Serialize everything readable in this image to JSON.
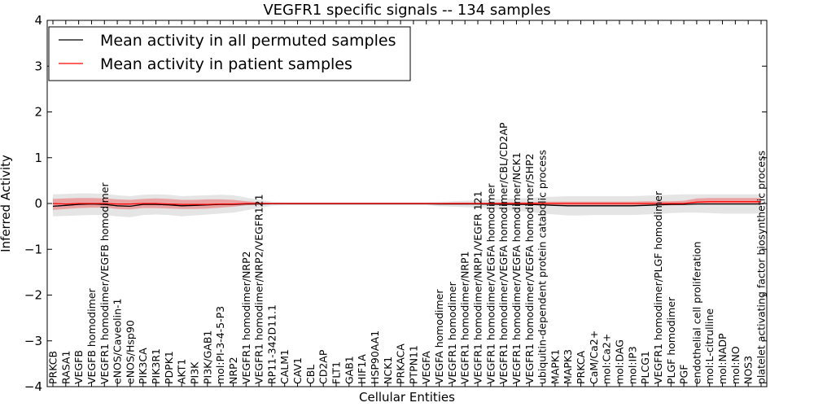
{
  "chart_data": {
    "type": "line",
    "title": "VEGFR1 specific signals -- 134 samples",
    "xlabel": "Cellular Entities",
    "ylabel": "Inferred Activity",
    "ylim": [
      -4,
      4
    ],
    "yticks": [
      -4,
      -3,
      -2,
      -1,
      0,
      1,
      2,
      3,
      4
    ],
    "grid": false,
    "legend_position": "top-left",
    "categories": [
      "PRKCB",
      "RASA1",
      "VEGFB",
      "VEGFB homodimer",
      "VEGFR1 homodimer/VEGFB homodimer",
      "eNOS/Caveolin-1",
      "eNOS/Hsp90",
      "PIK3CA",
      "PIK3R1",
      "PDPK1",
      "AKT1",
      "PI3K",
      "PI3K/GAB1",
      "mol:PI-3-4-5-P3",
      "NRP2",
      "VEGFR1 homodimer/NRP2",
      "VEGFR1 homodimer/NRP2/VEGFR121",
      "RP11-342D11.1",
      "CALM1",
      "CAV1",
      "CBL",
      "CD2AP",
      "FLT1",
      "GAB1",
      "HIF1A",
      "HSP90AA1",
      "NCK1",
      "PRKACA",
      "PTPN11",
      "VEGFA",
      "VEGFA homodimer",
      "VEGFR1 homodimer",
      "VEGFR1 homodimer/NRP1",
      "VEGFR1 homodimer/NRP1/VEGFR 121",
      "VEGFR1 homodimer/VEGFA homodimer",
      "VEGFR1 homodimer/VEGFA homodimer/CBL/CD2AP",
      "VEGFR1 homodimer/VEGFA homodimer/NCK1",
      "VEGFR1 homodimer/VEGFA homodimer/SHP2",
      "ubiquitin-dependent protein catabolic process",
      "MAPK1",
      "MAPK3",
      "PRKCA",
      "CaM/Ca2+",
      "mol:Ca2+",
      "mol:DAG",
      "mol:IP3",
      "PLCG1",
      "VEGFR1 homodimer/PLGF homodimer",
      "PLGF homodimer",
      "PGF",
      "endothelial cell proliferation",
      "mol:L-citrulline",
      "mol:NADP",
      "mol:NO",
      "NOS3",
      "platelet activating factor biosynthetic process"
    ],
    "series": [
      {
        "name": "Mean activity in all permuted samples",
        "color": "#000000",
        "values": [
          -0.06,
          -0.04,
          -0.02,
          -0.01,
          -0.02,
          -0.05,
          -0.06,
          -0.02,
          -0.02,
          -0.03,
          -0.05,
          -0.04,
          -0.03,
          -0.02,
          -0.02,
          -0.01,
          -0.01,
          -0.005,
          -0.005,
          -0.005,
          -0.005,
          -0.005,
          -0.005,
          -0.005,
          -0.005,
          -0.005,
          -0.005,
          -0.005,
          -0.005,
          -0.005,
          -0.01,
          -0.01,
          -0.01,
          -0.01,
          -0.015,
          -0.02,
          -0.02,
          -0.02,
          -0.03,
          -0.04,
          -0.05,
          -0.05,
          -0.05,
          -0.05,
          -0.05,
          -0.05,
          -0.04,
          -0.03,
          -0.02,
          -0.02,
          -0.01,
          -0.01,
          -0.01,
          -0.01,
          -0.01,
          -0.01
        ],
        "band_low": [
          -0.28,
          -0.27,
          -0.26,
          -0.25,
          -0.25,
          -0.28,
          -0.3,
          -0.25,
          -0.24,
          -0.25,
          -0.28,
          -0.26,
          -0.24,
          -0.22,
          -0.2,
          -0.15,
          -0.1,
          -0.05,
          -0.04,
          -0.04,
          -0.04,
          -0.04,
          -0.04,
          -0.04,
          -0.04,
          -0.04,
          -0.04,
          -0.04,
          -0.04,
          -0.04,
          -0.06,
          -0.07,
          -0.08,
          -0.09,
          -0.1,
          -0.14,
          -0.16,
          -0.18,
          -0.22,
          -0.24,
          -0.26,
          -0.26,
          -0.25,
          -0.25,
          -0.25,
          -0.25,
          -0.24,
          -0.23,
          -0.21,
          -0.2,
          -0.2,
          -0.21,
          -0.22,
          -0.22,
          -0.22,
          -0.22
        ],
        "band_high": [
          0.2,
          0.21,
          0.22,
          0.22,
          0.21,
          0.18,
          0.16,
          0.19,
          0.2,
          0.19,
          0.16,
          0.17,
          0.18,
          0.19,
          0.18,
          0.13,
          0.08,
          0.04,
          0.03,
          0.03,
          0.03,
          0.03,
          0.03,
          0.03,
          0.03,
          0.03,
          0.03,
          0.03,
          0.03,
          0.03,
          0.04,
          0.05,
          0.06,
          0.07,
          0.08,
          0.1,
          0.11,
          0.12,
          0.14,
          0.15,
          0.16,
          0.16,
          0.16,
          0.16,
          0.16,
          0.16,
          0.17,
          0.18,
          0.19,
          0.2,
          0.2,
          0.2,
          0.2,
          0.2,
          0.2,
          0.2
        ]
      },
      {
        "name": "Mean activity in patient samples",
        "color": "#ff0000",
        "values": [
          0.0,
          -0.01,
          0.0,
          0.0,
          0.0,
          -0.01,
          -0.01,
          0.0,
          0.0,
          -0.01,
          -0.02,
          -0.02,
          -0.02,
          -0.01,
          -0.01,
          0.0,
          0.0,
          0.0,
          0.0,
          0.0,
          0.0,
          0.0,
          0.0,
          0.0,
          0.0,
          0.0,
          0.0,
          0.0,
          0.0,
          0.0,
          0.0,
          0.0,
          0.0,
          0.0,
          0.0,
          0.0,
          0.0,
          0.0,
          0.0,
          0.0,
          0.0,
          0.0,
          0.0,
          0.0,
          0.0,
          0.0,
          0.0,
          0.0,
          0.0,
          0.0,
          0.03,
          0.04,
          0.04,
          0.04,
          0.04,
          0.04
        ],
        "band_low": [
          -0.14,
          -0.12,
          -0.1,
          -0.09,
          -0.09,
          -0.12,
          -0.13,
          -0.1,
          -0.1,
          -0.11,
          -0.12,
          -0.12,
          -0.11,
          -0.09,
          -0.07,
          -0.04,
          -0.02,
          -0.01,
          -0.01,
          -0.01,
          -0.01,
          -0.01,
          -0.01,
          -0.01,
          -0.01,
          -0.01,
          -0.01,
          -0.01,
          -0.01,
          -0.01,
          -0.01,
          -0.02,
          -0.02,
          -0.02,
          -0.02,
          -0.02,
          -0.03,
          -0.03,
          -0.04,
          -0.04,
          -0.05,
          -0.05,
          -0.05,
          -0.05,
          -0.05,
          -0.05,
          -0.05,
          -0.04,
          -0.04,
          -0.03,
          -0.01,
          -0.01,
          -0.01,
          -0.01,
          -0.01,
          -0.01
        ],
        "band_high": [
          0.1,
          0.11,
          0.12,
          0.12,
          0.11,
          0.09,
          0.08,
          0.1,
          0.11,
          0.1,
          0.08,
          0.08,
          0.09,
          0.09,
          0.08,
          0.05,
          0.03,
          0.01,
          0.01,
          0.01,
          0.01,
          0.01,
          0.01,
          0.01,
          0.01,
          0.01,
          0.01,
          0.01,
          0.01,
          0.01,
          0.01,
          0.02,
          0.02,
          0.02,
          0.02,
          0.03,
          0.03,
          0.03,
          0.04,
          0.04,
          0.04,
          0.04,
          0.04,
          0.04,
          0.04,
          0.04,
          0.05,
          0.05,
          0.05,
          0.06,
          0.11,
          0.12,
          0.12,
          0.12,
          0.12,
          0.12
        ]
      }
    ]
  }
}
